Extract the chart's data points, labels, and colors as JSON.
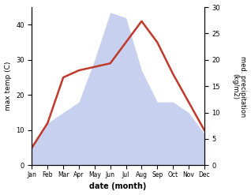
{
  "months": [
    "Jan",
    "Feb",
    "Mar",
    "Apr",
    "May",
    "Jun",
    "Jul",
    "Aug",
    "Sep",
    "Oct",
    "Nov",
    "Dec"
  ],
  "temperature": [
    5,
    12,
    25,
    27,
    28,
    29,
    35,
    41,
    35,
    26,
    18,
    10
  ],
  "precipitation": [
    4,
    8,
    10,
    12,
    20,
    29,
    28,
    18,
    12,
    12,
    10,
    6
  ],
  "temp_color": "#c0392b",
  "precip_fill_color": "#c8d0f0",
  "bg_color": "#ffffff",
  "ylabel_left": "max temp (C)",
  "ylabel_right": "med. precipitation\n(kg/m2)",
  "xlabel": "date (month)",
  "ylim_left": [
    0,
    45
  ],
  "ylim_right": [
    0,
    30
  ],
  "left_yticks": [
    0,
    10,
    20,
    30,
    40
  ],
  "right_yticks": [
    0,
    5,
    10,
    15,
    20,
    25,
    30
  ],
  "precip_scale": 1.5
}
